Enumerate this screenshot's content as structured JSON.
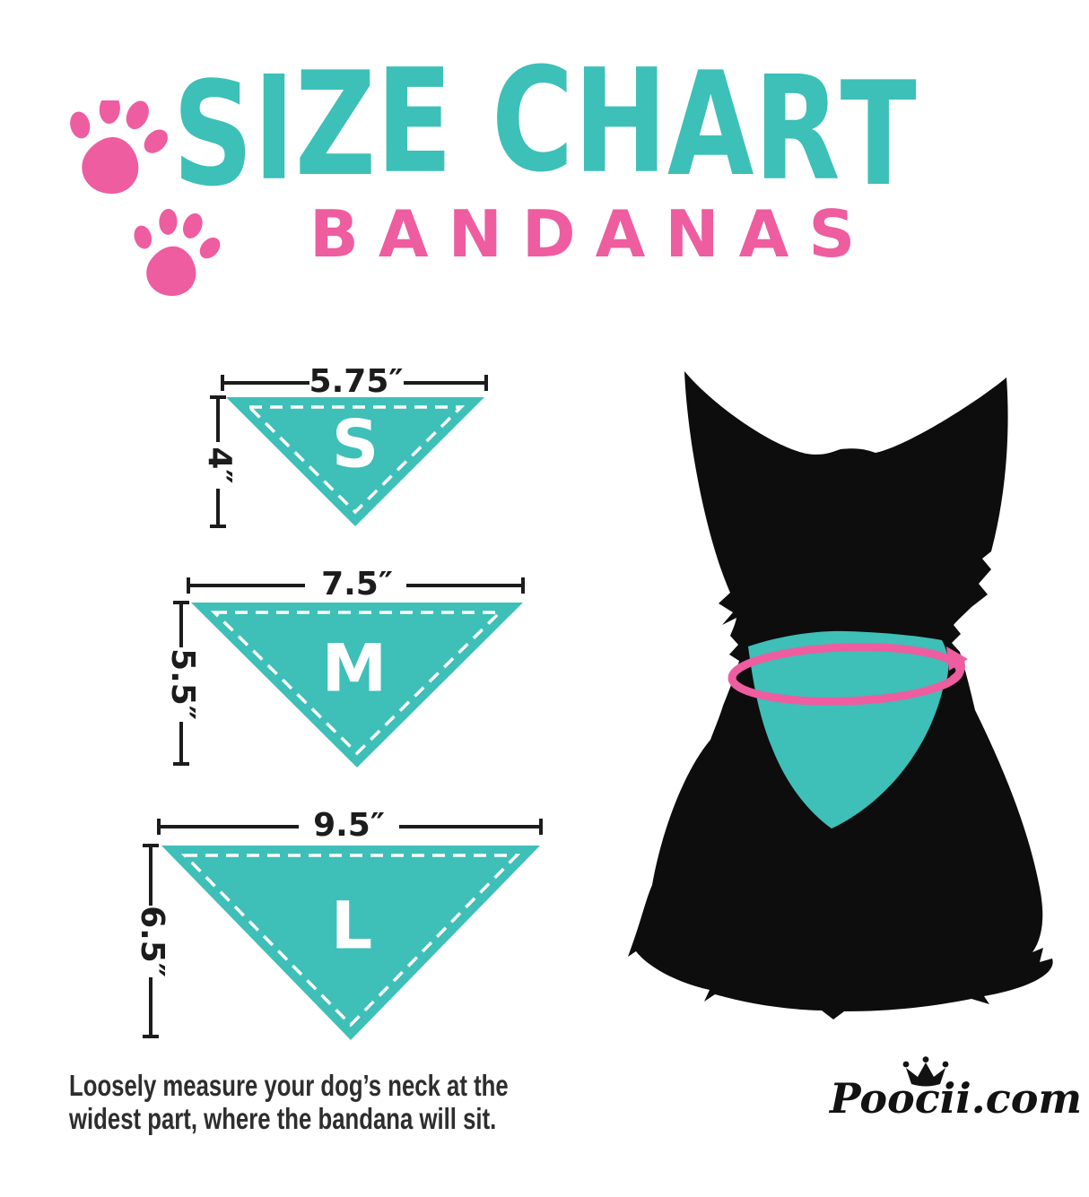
{
  "header": {
    "title": "SIZE CHART",
    "subtitle": "BANDANAS"
  },
  "sizes": [
    {
      "label": "S",
      "width": "5.75″",
      "height": "4″"
    },
    {
      "label": "M",
      "width": "7.5″",
      "height": "5.5″"
    },
    {
      "label": "L",
      "width": "9.5″",
      "height": "6.5″"
    }
  ],
  "note": {
    "line1": "Loosely measure your dog’s neck at the",
    "line2": "widest part, where the bandana will sit."
  },
  "brand": {
    "name": "Poocii.com"
  },
  "colors": {
    "teal": "#3ebfb8",
    "title_teal": "#3cc0b8",
    "pink": "#ee5d9f",
    "ink": "#1c1c1c",
    "dog_black": "#0d0d0d",
    "note_gray": "#2e2e2e"
  },
  "icons": [
    "paw-icon",
    "crown-icon",
    "rotation-arrow-icon"
  ]
}
